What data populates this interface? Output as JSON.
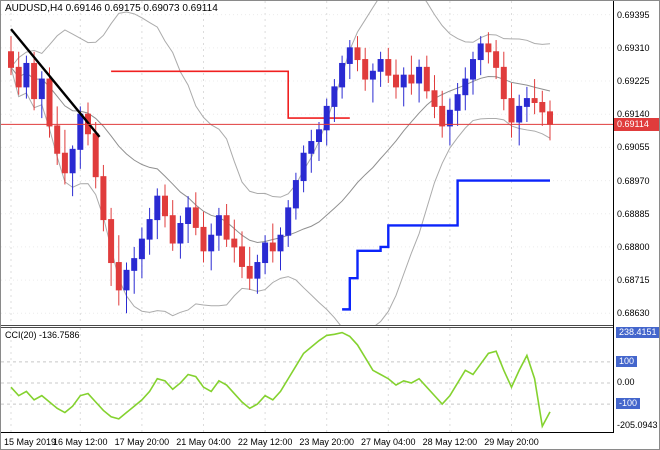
{
  "header": {
    "symbol_line": "AUDUSD,H4 0.69146 0.69175 0.69073 0.69114"
  },
  "indicator": {
    "label": "CCI(20) -136.7586"
  },
  "colors": {
    "background": "#FFFFFF",
    "bull_candle": "#2A2AD2",
    "bear_candle": "#E03C3C",
    "bands": "#ABABAB",
    "trendline": "#000000",
    "price_line": "#E03C3C",
    "price_tag_bg": "#E03C3C",
    "blue_step_line": "#0B24FB",
    "red_step_line": "#F02020",
    "cci_line": "#84D22F",
    "level_line": "#C8C8C8",
    "level_badge_bg": "#4466CC",
    "grid": "#DCDCDC",
    "axis_text": "#000000"
  },
  "chart_data": {
    "type": "candlestick",
    "symbol": "AUDUSD",
    "timeframe": "H4",
    "ohlc_header": {
      "open": "0.69146",
      "high": "0.69175",
      "low": "0.69073",
      "close": "0.69114"
    },
    "price_axis": {
      "top": 0.6943,
      "bottom": 0.686,
      "labels": [
        {
          "text": "0.69395",
          "value": 0.69395
        },
        {
          "text": "0.69310",
          "value": 0.6931
        },
        {
          "text": "0.69225",
          "value": 0.69225
        },
        {
          "text": "0.69140",
          "value": 0.6914
        },
        {
          "text": "0.69055",
          "value": 0.69055
        },
        {
          "text": "0.68970",
          "value": 0.6897
        },
        {
          "text": "0.68885",
          "value": 0.68885
        },
        {
          "text": "0.68800",
          "value": 0.688
        },
        {
          "text": "0.68715",
          "value": 0.68715
        },
        {
          "text": "0.68630",
          "value": 0.6863
        }
      ],
      "current": {
        "price": 0.69114,
        "label": "0.69114"
      }
    },
    "time_axis": {
      "ticks": [
        {
          "index": 0,
          "label": "15 May 2019"
        },
        {
          "index": 9,
          "label": "16 May 12:00"
        },
        {
          "index": 17,
          "label": "17 May 20:00"
        },
        {
          "index": 25,
          "label": "21 May 04:00"
        },
        {
          "index": 33,
          "label": "22 May 12:00"
        },
        {
          "index": 41,
          "label": "23 May 20:00"
        },
        {
          "index": 49,
          "label": "27 May 04:00"
        },
        {
          "index": 57,
          "label": "28 May 12:00"
        },
        {
          "index": 65,
          "label": "29 May 20:00"
        }
      ]
    },
    "candles": [
      [
        0.693,
        0.6934,
        0.6924,
        0.6926
      ],
      [
        0.6926,
        0.693,
        0.6919,
        0.6921
      ],
      [
        0.6921,
        0.6929,
        0.6918,
        0.6927
      ],
      [
        0.6927,
        0.693,
        0.6915,
        0.6918
      ],
      [
        0.6918,
        0.6925,
        0.6913,
        0.6923
      ],
      [
        0.6923,
        0.6926,
        0.6908,
        0.6911
      ],
      [
        0.6911,
        0.6916,
        0.6901,
        0.6904
      ],
      [
        0.6904,
        0.691,
        0.6896,
        0.6899
      ],
      [
        0.6899,
        0.6906,
        0.6893,
        0.6905
      ],
      [
        0.6905,
        0.6916,
        0.69,
        0.6914
      ],
      [
        0.6914,
        0.6917,
        0.6906,
        0.6909
      ],
      [
        0.6909,
        0.6912,
        0.6895,
        0.6898
      ],
      [
        0.6898,
        0.6901,
        0.6884,
        0.6887
      ],
      [
        0.6887,
        0.689,
        0.687,
        0.6876
      ],
      [
        0.6876,
        0.6883,
        0.6865,
        0.6869
      ],
      [
        0.6869,
        0.6876,
        0.6863,
        0.6874
      ],
      [
        0.6874,
        0.688,
        0.6868,
        0.6877
      ],
      [
        0.6877,
        0.6885,
        0.6872,
        0.6882
      ],
      [
        0.6882,
        0.689,
        0.6878,
        0.6887
      ],
      [
        0.6887,
        0.6895,
        0.6882,
        0.6893
      ],
      [
        0.6893,
        0.6896,
        0.6885,
        0.6888
      ],
      [
        0.6888,
        0.6892,
        0.6879,
        0.6881
      ],
      [
        0.6881,
        0.6888,
        0.6877,
        0.6886
      ],
      [
        0.6886,
        0.6893,
        0.6881,
        0.689
      ],
      [
        0.689,
        0.6894,
        0.6883,
        0.6885
      ],
      [
        0.6885,
        0.6889,
        0.6876,
        0.6879
      ],
      [
        0.6879,
        0.6886,
        0.6874,
        0.6883
      ],
      [
        0.6883,
        0.689,
        0.6879,
        0.6888
      ],
      [
        0.6888,
        0.6891,
        0.688,
        0.6882
      ],
      [
        0.6882,
        0.6887,
        0.6876,
        0.688
      ],
      [
        0.688,
        0.6884,
        0.6872,
        0.6875
      ],
      [
        0.6875,
        0.688,
        0.6869,
        0.6872
      ],
      [
        0.6872,
        0.6878,
        0.6868,
        0.6876
      ],
      [
        0.6876,
        0.6883,
        0.6873,
        0.6881
      ],
      [
        0.6881,
        0.6886,
        0.6876,
        0.6879
      ],
      [
        0.6879,
        0.6885,
        0.6874,
        0.6883
      ],
      [
        0.6883,
        0.6892,
        0.688,
        0.689
      ],
      [
        0.689,
        0.6899,
        0.6887,
        0.6897
      ],
      [
        0.6897,
        0.6906,
        0.6894,
        0.6904
      ],
      [
        0.6904,
        0.691,
        0.6899,
        0.6907
      ],
      [
        0.6907,
        0.6912,
        0.6902,
        0.691
      ],
      [
        0.691,
        0.6918,
        0.6906,
        0.6916
      ],
      [
        0.6916,
        0.6923,
        0.6912,
        0.6921
      ],
      [
        0.6921,
        0.6929,
        0.6918,
        0.6927
      ],
      [
        0.6927,
        0.6933,
        0.6923,
        0.6931
      ],
      [
        0.6931,
        0.6934,
        0.6925,
        0.6928
      ],
      [
        0.6928,
        0.6931,
        0.692,
        0.6923
      ],
      [
        0.6923,
        0.6927,
        0.6917,
        0.6925
      ],
      [
        0.6925,
        0.693,
        0.6921,
        0.6928
      ],
      [
        0.6928,
        0.6931,
        0.6922,
        0.6924
      ],
      [
        0.6924,
        0.6928,
        0.6918,
        0.6921
      ],
      [
        0.6921,
        0.6926,
        0.6916,
        0.6924
      ],
      [
        0.6924,
        0.6929,
        0.6919,
        0.6922
      ],
      [
        0.6922,
        0.6928,
        0.6917,
        0.6926
      ],
      [
        0.6926,
        0.6929,
        0.6918,
        0.692
      ],
      [
        0.692,
        0.6924,
        0.6913,
        0.6916
      ],
      [
        0.6916,
        0.692,
        0.6908,
        0.6911
      ],
      [
        0.6911,
        0.6918,
        0.6906,
        0.6915
      ],
      [
        0.6915,
        0.6922,
        0.6911,
        0.6919
      ],
      [
        0.6919,
        0.6926,
        0.6915,
        0.6923
      ],
      [
        0.6923,
        0.693,
        0.6919,
        0.6928
      ],
      [
        0.6928,
        0.6934,
        0.6924,
        0.6932
      ],
      [
        0.6932,
        0.6935,
        0.6927,
        0.693
      ],
      [
        0.693,
        0.6933,
        0.6923,
        0.6926
      ],
      [
        0.6926,
        0.693,
        0.6915,
        0.6918
      ],
      [
        0.6918,
        0.6922,
        0.6908,
        0.6912
      ],
      [
        0.6912,
        0.6919,
        0.6906,
        0.6916
      ],
      [
        0.6916,
        0.6921,
        0.6912,
        0.6918
      ],
      [
        0.6918,
        0.6923,
        0.6914,
        0.6917
      ],
      [
        0.6917,
        0.692,
        0.6911,
        0.69146
      ],
      [
        0.69146,
        0.69175,
        0.69073,
        0.69114
      ]
    ],
    "overlays": {
      "bollinger_period": 20,
      "red_step_line": [
        [
          13,
          0.6925
        ],
        [
          35,
          0.6925
        ],
        [
          36,
          0.6913
        ],
        [
          44,
          0.6913
        ]
      ],
      "blue_step_line": [
        [
          43,
          0.6864
        ],
        [
          44,
          0.6872
        ],
        [
          45,
          0.6879
        ],
        [
          48,
          0.688
        ],
        [
          49,
          0.68855
        ],
        [
          57,
          0.68855
        ],
        [
          58,
          0.6897
        ],
        [
          70,
          0.6897
        ]
      ],
      "trendline": {
        "from": {
          "index": 0,
          "price": 0.69358
        },
        "to": {
          "index": 11.5,
          "price": 0.69082
        }
      }
    },
    "cci": {
      "label": "CCI(20) -136.7586",
      "period": 20,
      "current": -136.7586,
      "levels": [
        100,
        0,
        -100
      ],
      "range": {
        "min": -232,
        "max": 260
      },
      "axis_labels": [
        {
          "text": "238.4151",
          "value": 238.4151,
          "badge": true
        },
        {
          "text": "100",
          "value": 100,
          "badge": true
        },
        {
          "text": "0.00",
          "value": 0,
          "badge": false
        },
        {
          "text": "-100",
          "value": -100,
          "badge": true
        },
        {
          "text": "-205.0943",
          "value": -205.0943,
          "badge": false
        }
      ],
      "values": [
        -20,
        -60,
        -40,
        -80,
        -60,
        -90,
        -120,
        -140,
        -110,
        -60,
        -50,
        -90,
        -130,
        -160,
        -170,
        -140,
        -110,
        -80,
        -40,
        20,
        10,
        -30,
        0,
        40,
        30,
        -20,
        -40,
        10,
        -10,
        -50,
        -90,
        -120,
        -100,
        -60,
        -80,
        -40,
        20,
        80,
        140,
        170,
        200,
        225,
        230,
        238.4151,
        220,
        180,
        120,
        60,
        40,
        20,
        -10,
        10,
        0,
        20,
        -20,
        -60,
        -100,
        -60,
        0,
        60,
        40,
        90,
        140,
        150,
        60,
        -20,
        60,
        130,
        20,
        -205.0943,
        -136.7586
      ]
    }
  }
}
